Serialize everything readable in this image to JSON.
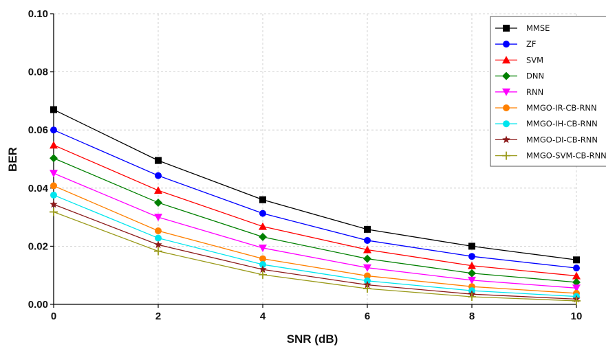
{
  "chart_data": {
    "type": "line",
    "xlabel": "SNR (dB)",
    "ylabel": "BER",
    "xlim": [
      0,
      10
    ],
    "ylim": [
      0,
      0.1
    ],
    "x": [
      0,
      2,
      4,
      6,
      8,
      10
    ],
    "x_tick_labels": [
      "0",
      "2",
      "4",
      "6",
      "8",
      "10"
    ],
    "y_tick_labels": [
      "0.00",
      "0.02",
      "0.04",
      "0.06",
      "0.08",
      "0.10"
    ],
    "y_ticks": [
      0,
      0.02,
      0.04,
      0.06,
      0.08,
      0.1
    ],
    "grid": true,
    "legend_position": "top-right",
    "series": [
      {
        "name": "MMSE",
        "color": "#000000",
        "marker": "square",
        "values": [
          0.067,
          0.0495,
          0.036,
          0.0258,
          0.02,
          0.0153
        ]
      },
      {
        "name": "ZF",
        "color": "#0000ff",
        "marker": "circle",
        "values": [
          0.06,
          0.0443,
          0.0313,
          0.022,
          0.0165,
          0.0125
        ]
      },
      {
        "name": "SVM",
        "color": "#ff0000",
        "marker": "triangle-up",
        "values": [
          0.0548,
          0.0392,
          0.0268,
          0.0188,
          0.0133,
          0.0098
        ]
      },
      {
        "name": "DNN",
        "color": "#008000",
        "marker": "diamond",
        "values": [
          0.0503,
          0.035,
          0.0232,
          0.0157,
          0.0107,
          0.0076
        ]
      },
      {
        "name": "RNN",
        "color": "#ff00ff",
        "marker": "triangle-down",
        "values": [
          0.0451,
          0.03,
          0.0194,
          0.0126,
          0.0083,
          0.0056
        ]
      },
      {
        "name": "MMGO-IR-CB-RNN",
        "color": "#ff8000",
        "marker": "circle",
        "values": [
          0.0408,
          0.0253,
          0.0157,
          0.0098,
          0.0061,
          0.0038
        ]
      },
      {
        "name": "MMGO-IH-CB-RNN",
        "color": "#00e5ee",
        "marker": "circle",
        "values": [
          0.0376,
          0.0228,
          0.0137,
          0.0081,
          0.0047,
          0.0027
        ]
      },
      {
        "name": "MMGO-DI-CB-RNN",
        "color": "#8b1a1a",
        "marker": "star",
        "values": [
          0.0344,
          0.0205,
          0.012,
          0.0067,
          0.0035,
          0.0018
        ]
      },
      {
        "name": "MMGO-SVM-CB-RNN",
        "color": "#9a9a1a",
        "marker": "plus",
        "values": [
          0.0318,
          0.0183,
          0.0102,
          0.0054,
          0.0026,
          0.0012
        ]
      }
    ]
  }
}
